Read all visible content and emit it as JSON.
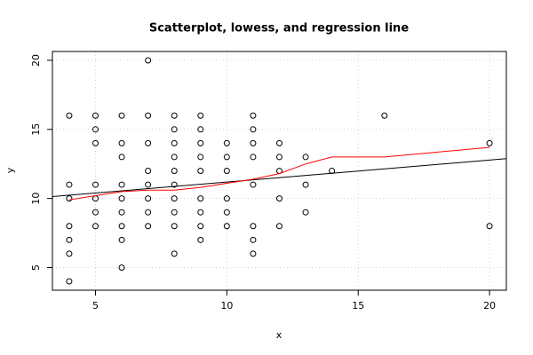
{
  "chart_data": {
    "type": "scatter",
    "title": "Scatterplot, lowess, and regression line",
    "x_label": "x",
    "y_label": "y",
    "x": [
      4,
      4,
      4,
      4,
      4,
      4,
      4,
      5,
      5,
      5,
      5,
      5,
      5,
      5,
      6,
      6,
      6,
      6,
      6,
      6,
      6,
      6,
      6,
      7,
      7,
      7,
      7,
      7,
      7,
      7,
      7,
      8,
      8,
      8,
      8,
      8,
      8,
      8,
      8,
      8,
      8,
      9,
      9,
      9,
      9,
      9,
      9,
      9,
      9,
      9,
      10,
      10,
      10,
      10,
      10,
      10,
      11,
      11,
      11,
      11,
      11,
      11,
      11,
      11,
      12,
      12,
      12,
      12,
      12,
      13,
      13,
      13,
      14,
      16,
      20,
      20
    ],
    "y": [
      16,
      11,
      10,
      8,
      7,
      6,
      4,
      16,
      15,
      14,
      11,
      10,
      9,
      8,
      16,
      14,
      13,
      11,
      10,
      9,
      8,
      7,
      5,
      20,
      16,
      14,
      12,
      11,
      10,
      9,
      8,
      16,
      15,
      14,
      13,
      12,
      11,
      10,
      9,
      8,
      6,
      16,
      15,
      14,
      13,
      12,
      10,
      9,
      8,
      7,
      14,
      13,
      12,
      10,
      9,
      8,
      16,
      15,
      14,
      13,
      11,
      8,
      7,
      6,
      14,
      13,
      12,
      10,
      8,
      13,
      11,
      9,
      12,
      16,
      14,
      8
    ],
    "point_color": "#000000",
    "lowess": {
      "x": [
        4,
        5,
        6,
        7,
        8,
        9,
        10,
        11,
        12,
        13,
        14,
        16,
        20
      ],
      "y": [
        9.9,
        10.2,
        10.5,
        10.6,
        10.6,
        10.8,
        11.1,
        11.4,
        11.8,
        12.5,
        13.0,
        13.0,
        13.7
      ],
      "color": "#ff0000"
    },
    "regression": {
      "intercept": 9.6,
      "slope": 0.159,
      "color": "#000000"
    },
    "xlim": [
      3.36,
      20.64
    ],
    "ylim": [
      3.36,
      20.64
    ],
    "xticks": [
      5,
      10,
      15,
      20
    ],
    "yticks": [
      5,
      10,
      15,
      20
    ],
    "grid": true
  }
}
